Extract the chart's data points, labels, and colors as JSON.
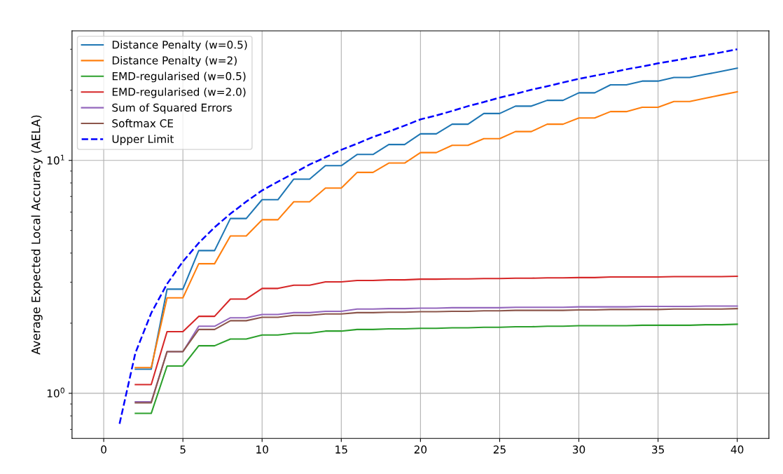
{
  "chart_data": {
    "type": "line",
    "ylabel": "Average Expected Local Accuracy (AELA)",
    "log": "y",
    "grid": true,
    "legend": "top left",
    "x": [
      1,
      2,
      3,
      4,
      5,
      6,
      7,
      8,
      9,
      10,
      11,
      12,
      13,
      14,
      15,
      16,
      17,
      18,
      19,
      20,
      21,
      22,
      23,
      24,
      25,
      26,
      27,
      28,
      29,
      30,
      31,
      32,
      33,
      34,
      35,
      36,
      37,
      38,
      39,
      40
    ],
    "xlim": [
      -2,
      42
    ],
    "xticks": [
      0,
      5,
      10,
      15,
      20,
      25,
      30,
      35,
      40
    ],
    "ylim": [
      0.64,
      36
    ],
    "yticks": [
      {
        "value": 1,
        "label": "10$^{0}$"
      },
      {
        "value": 10,
        "label": "10$^{1}$"
      }
    ],
    "series": [
      {
        "name": "Distance Penalty (w=0.5)",
        "color": "#1f77b4",
        "values": [
          null,
          1.27,
          1.27,
          2.8,
          2.8,
          4.1,
          4.1,
          5.63,
          5.63,
          6.78,
          6.78,
          8.31,
          8.31,
          9.49,
          9.49,
          10.6,
          10.6,
          11.7,
          11.7,
          13.0,
          13.0,
          14.3,
          14.3,
          15.9,
          15.9,
          17.1,
          17.1,
          18.1,
          18.1,
          19.5,
          19.5,
          21.1,
          21.1,
          21.9,
          21.9,
          22.7,
          22.7,
          23.4,
          24.1,
          24.9
        ]
      },
      {
        "name": "Distance Penalty (w=2)",
        "color": "#ff7f0e",
        "values": [
          null,
          1.29,
          1.29,
          2.57,
          2.57,
          3.6,
          3.6,
          4.74,
          4.74,
          5.56,
          5.56,
          6.64,
          6.64,
          7.6,
          7.6,
          8.88,
          8.88,
          9.74,
          9.74,
          10.8,
          10.8,
          11.6,
          11.6,
          12.4,
          12.4,
          13.3,
          13.3,
          14.3,
          14.3,
          15.2,
          15.2,
          16.2,
          16.2,
          16.9,
          16.9,
          17.9,
          17.9,
          18.5,
          19.1,
          19.7
        ]
      },
      {
        "name": "EMD-regularised (w=0.5)",
        "color": "#2ca02c",
        "values": [
          null,
          0.82,
          0.82,
          1.31,
          1.31,
          1.6,
          1.6,
          1.71,
          1.71,
          1.78,
          1.78,
          1.81,
          1.81,
          1.85,
          1.85,
          1.88,
          1.88,
          1.89,
          1.89,
          1.9,
          1.9,
          1.91,
          1.91,
          1.92,
          1.92,
          1.93,
          1.93,
          1.94,
          1.94,
          1.95,
          1.95,
          1.95,
          1.95,
          1.96,
          1.96,
          1.96,
          1.96,
          1.97,
          1.97,
          1.98
        ]
      },
      {
        "name": "EMD-regularised (w=2.0)",
        "color": "#d62728",
        "values": [
          null,
          1.09,
          1.09,
          1.84,
          1.84,
          2.14,
          2.14,
          2.54,
          2.54,
          2.82,
          2.82,
          2.91,
          2.91,
          3.01,
          3.01,
          3.05,
          3.05,
          3.07,
          3.07,
          3.09,
          3.09,
          3.1,
          3.1,
          3.11,
          3.11,
          3.12,
          3.12,
          3.13,
          3.13,
          3.14,
          3.14,
          3.16,
          3.16,
          3.16,
          3.16,
          3.17,
          3.17,
          3.17,
          3.17,
          3.18
        ]
      },
      {
        "name": "Sum of Squared Errors",
        "color": "#9467bd",
        "values": [
          null,
          0.92,
          0.92,
          1.51,
          1.51,
          1.94,
          1.94,
          2.11,
          2.11,
          2.18,
          2.18,
          2.22,
          2.22,
          2.25,
          2.25,
          2.3,
          2.3,
          2.31,
          2.31,
          2.32,
          2.32,
          2.33,
          2.33,
          2.33,
          2.33,
          2.34,
          2.34,
          2.34,
          2.34,
          2.35,
          2.35,
          2.35,
          2.35,
          2.36,
          2.36,
          2.36,
          2.36,
          2.37,
          2.37,
          2.37
        ]
      },
      {
        "name": "Softmax CE",
        "color": "#8c564b",
        "values": [
          null,
          0.91,
          0.91,
          1.51,
          1.51,
          1.88,
          1.88,
          2.05,
          2.05,
          2.12,
          2.12,
          2.16,
          2.16,
          2.19,
          2.19,
          2.22,
          2.22,
          2.23,
          2.23,
          2.24,
          2.24,
          2.25,
          2.25,
          2.26,
          2.26,
          2.27,
          2.27,
          2.27,
          2.27,
          2.28,
          2.28,
          2.29,
          2.29,
          2.29,
          2.29,
          2.3,
          2.3,
          2.3,
          2.3,
          2.31
        ]
      },
      {
        "name": "Upper Limit",
        "color": "#0000ff",
        "line_style": "dashed",
        "values": [
          0.74,
          1.49,
          2.21,
          2.95,
          3.68,
          4.42,
          5.16,
          5.9,
          6.65,
          7.43,
          8.1,
          8.8,
          9.6,
          10.3,
          11.1,
          11.8,
          12.6,
          13.3,
          14.1,
          15.0,
          15.6,
          16.3,
          17.1,
          17.8,
          18.6,
          19.3,
          20.1,
          20.8,
          21.6,
          22.4,
          23.1,
          23.8,
          24.6,
          25.3,
          26.1,
          26.8,
          27.6,
          28.3,
          29.1,
          30.0
        ]
      }
    ]
  }
}
